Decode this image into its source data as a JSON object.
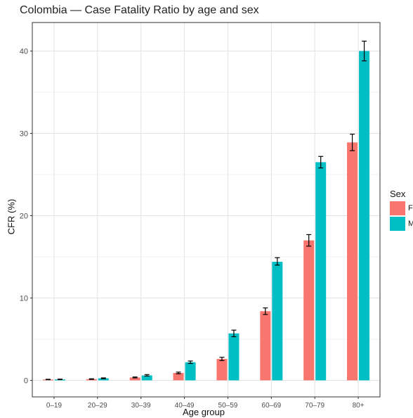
{
  "chart_data": {
    "type": "bar",
    "title": "Colombia — Case Fatality Ratio by age and sex",
    "xlabel": "Age group",
    "ylabel": "CFR (%)",
    "categories": [
      "0–19",
      "20–29",
      "30–39",
      "40–49",
      "50–59",
      "60–69",
      "70–79",
      "80+"
    ],
    "ylim": [
      0,
      42.5
    ],
    "yticks": [
      0,
      10,
      20,
      30,
      40
    ],
    "grid": true,
    "legend_title": "Sex",
    "legend_position": "right",
    "series": [
      {
        "name": "F",
        "color": "#F8766D",
        "values": [
          0.1,
          0.15,
          0.35,
          0.9,
          2.6,
          8.4,
          17.0,
          28.9
        ],
        "err_low": [
          0.08,
          0.12,
          0.3,
          0.8,
          2.4,
          8.0,
          16.3,
          27.9
        ],
        "err_high": [
          0.13,
          0.19,
          0.41,
          1.0,
          2.8,
          8.8,
          17.7,
          29.9
        ]
      },
      {
        "name": "M",
        "color": "#00BFC4",
        "values": [
          0.12,
          0.25,
          0.6,
          2.2,
          5.7,
          14.4,
          26.5,
          40.0
        ],
        "err_low": [
          0.09,
          0.2,
          0.52,
          2.05,
          5.3,
          14.0,
          25.8,
          38.8
        ],
        "err_high": [
          0.15,
          0.3,
          0.7,
          2.35,
          6.1,
          14.9,
          27.2,
          41.2
        ]
      }
    ]
  }
}
